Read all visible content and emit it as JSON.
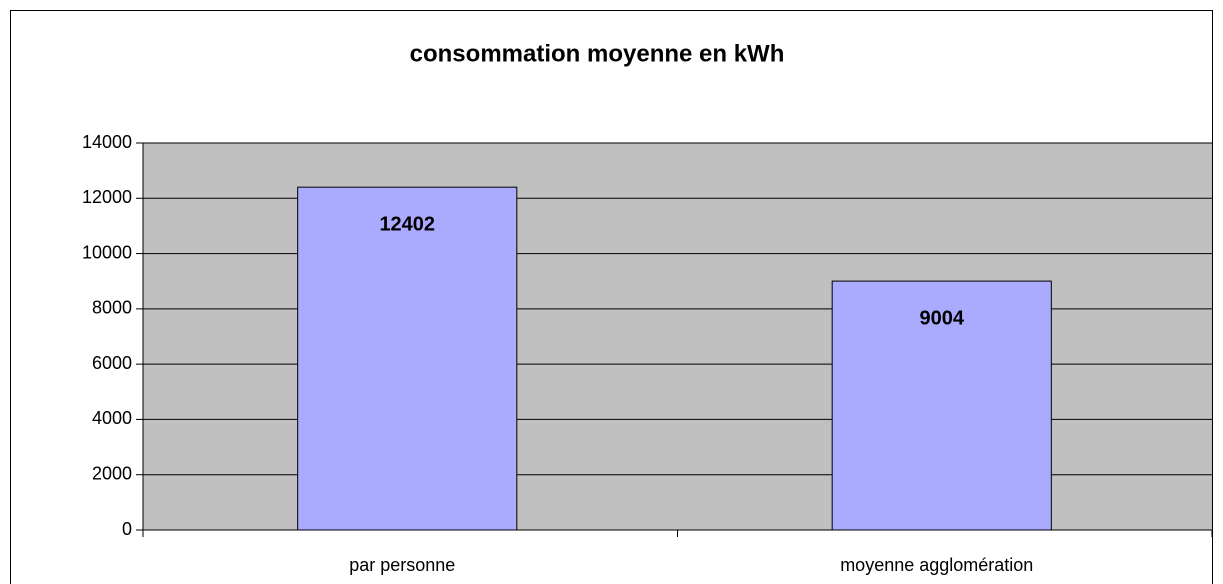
{
  "chart_data": {
    "type": "bar",
    "title": "consommation moyenne en kWh",
    "categories": [
      "par personne",
      "moyenne agglomération"
    ],
    "values": [
      12402,
      9004
    ],
    "color": "#aaaaff",
    "label_colors": [
      "#ff2a1a",
      "#000000"
    ],
    "ylim": [
      0,
      14000
    ],
    "yticks": [
      0,
      2000,
      4000,
      6000,
      8000,
      10000,
      12000,
      14000
    ],
    "grid": true
  }
}
